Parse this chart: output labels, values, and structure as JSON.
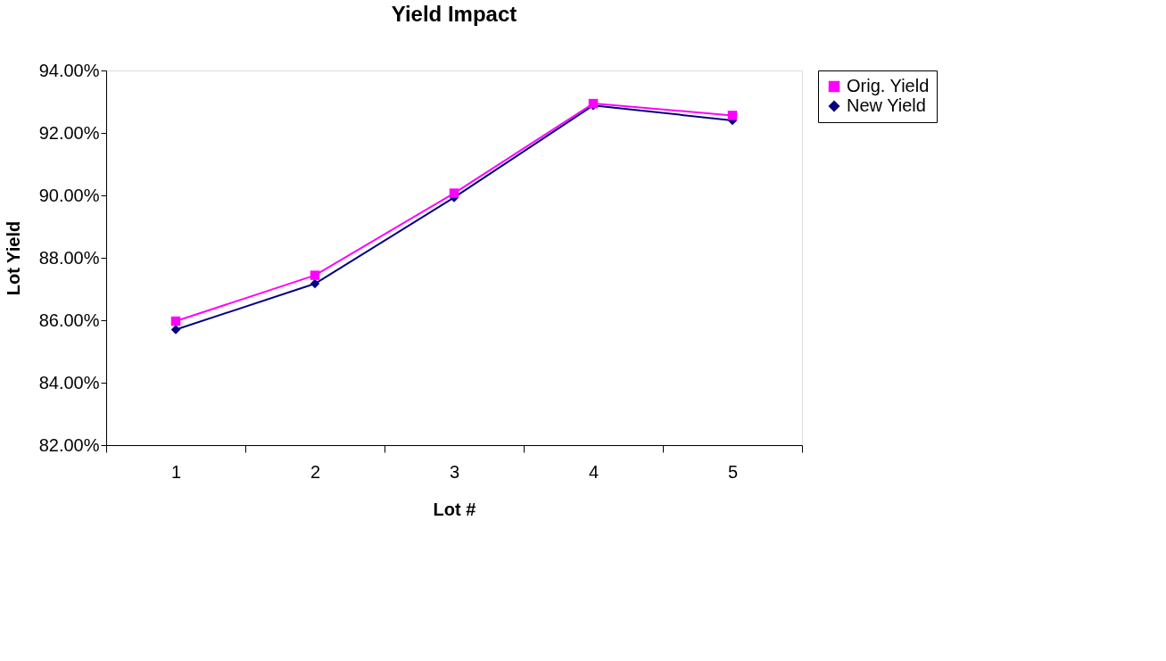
{
  "chart_data": {
    "type": "line",
    "title": "Yield Impact",
    "xlabel": "Lot #",
    "ylabel": "Lot Yield",
    "categories": [
      "1",
      "2",
      "3",
      "4",
      "5"
    ],
    "series": [
      {
        "name": "Orig. Yield",
        "color": "#ff00ff",
        "marker": "square",
        "values": [
          85.97,
          87.44,
          90.07,
          92.94,
          92.56
        ]
      },
      {
        "name": "New Yield",
        "color": "#000080",
        "marker": "diamond",
        "values": [
          85.7,
          87.17,
          89.93,
          92.88,
          92.4
        ]
      }
    ],
    "ylim": [
      82,
      94
    ],
    "yticks": [
      {
        "value": 82,
        "label": "82.00%"
      },
      {
        "value": 84,
        "label": "84.00%"
      },
      {
        "value": 86,
        "label": "86.00%"
      },
      {
        "value": 88,
        "label": "88.00%"
      },
      {
        "value": 90,
        "label": "90.00%"
      },
      {
        "value": 92,
        "label": "92.00%"
      },
      {
        "value": 94,
        "label": "94.00%"
      }
    ],
    "grid": false,
    "legend": "right",
    "line_style": "solid"
  }
}
